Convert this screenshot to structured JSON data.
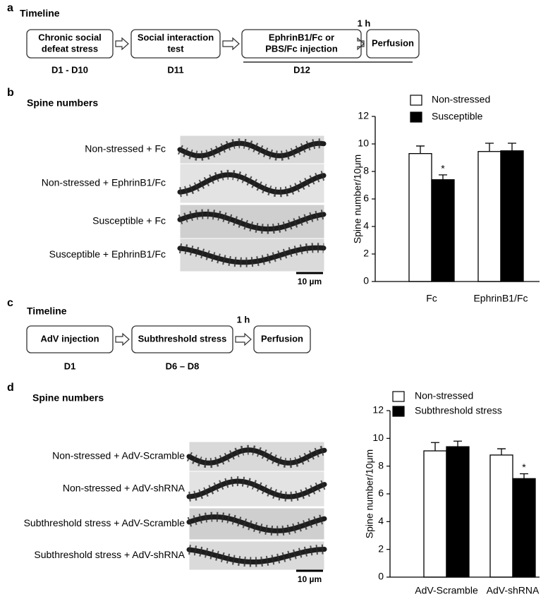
{
  "panels": [
    {
      "letter": "a",
      "title": "Timeline",
      "steps": [
        {
          "lines": [
            "Chronic social",
            "defeat stress"
          ],
          "day": "D1 - D10"
        },
        {
          "lines": [
            "Social interaction",
            "test"
          ],
          "day": "D11"
        },
        {
          "lines": [
            "EphrinB1/Fc or",
            "PBS/Fc injection"
          ]
        },
        {
          "lines": [
            "Perfusion"
          ]
        }
      ],
      "interval": "1 h",
      "shared_day": "D12"
    },
    {
      "letter": "b",
      "title": "Spine numbers",
      "image_labels": [
        "Non-stressed + Fc",
        "Non-stressed + EphrinB1/Fc",
        "Susceptible + Fc",
        "Susceptible + EphrinB1/Fc"
      ],
      "scale_bar": "10 µm"
    },
    {
      "letter": "c",
      "title": "Timeline",
      "steps": [
        {
          "lines": [
            "AdV injection"
          ],
          "day": "D1"
        },
        {
          "lines": [
            "Subthreshold stress"
          ],
          "day": "D6 – D8"
        },
        {
          "lines": [
            "Perfusion"
          ]
        }
      ],
      "interval": "1 h"
    },
    {
      "letter": "d",
      "title": "Spine numbers",
      "image_labels": [
        "Non-stressed + AdV-Scramble",
        "Non-stressed + AdV-shRNA",
        "Subthreshold stress + AdV-Scramble",
        "Subthreshold stress + AdV-shRNA"
      ],
      "scale_bar": "10 µm"
    }
  ],
  "chart_data": [
    {
      "type": "bar",
      "y_label": "Spine number/10μm",
      "categories": [
        "Fc",
        "EphrinB1/Fc"
      ],
      "series": [
        {
          "name": "Non-stressed",
          "color": "#ffffff",
          "values": [
            9.3,
            9.45
          ],
          "errors": [
            0.55,
            0.6
          ]
        },
        {
          "name": "Susceptible",
          "color": "#000000",
          "values": [
            7.4,
            9.5
          ],
          "errors": [
            0.35,
            0.55
          ],
          "significance": [
            "*",
            null
          ]
        }
      ],
      "ylim": [
        0,
        12
      ],
      "yticks": [
        0,
        2,
        4,
        6,
        8,
        10,
        12
      ]
    },
    {
      "type": "bar",
      "y_label": "Spine number/10μm",
      "categories": [
        "AdV-Scramble",
        "AdV-shRNA"
      ],
      "series": [
        {
          "name": "Non-stressed",
          "color": "#ffffff",
          "values": [
            9.1,
            8.8
          ],
          "errors": [
            0.6,
            0.45
          ]
        },
        {
          "name": "Subthreshold stress",
          "color": "#000000",
          "values": [
            9.4,
            7.1
          ],
          "errors": [
            0.4,
            0.35
          ],
          "significance": [
            null,
            "*"
          ]
        }
      ],
      "ylim": [
        0,
        12
      ],
      "yticks": [
        0,
        2,
        4,
        6,
        8,
        10,
        12
      ]
    }
  ]
}
